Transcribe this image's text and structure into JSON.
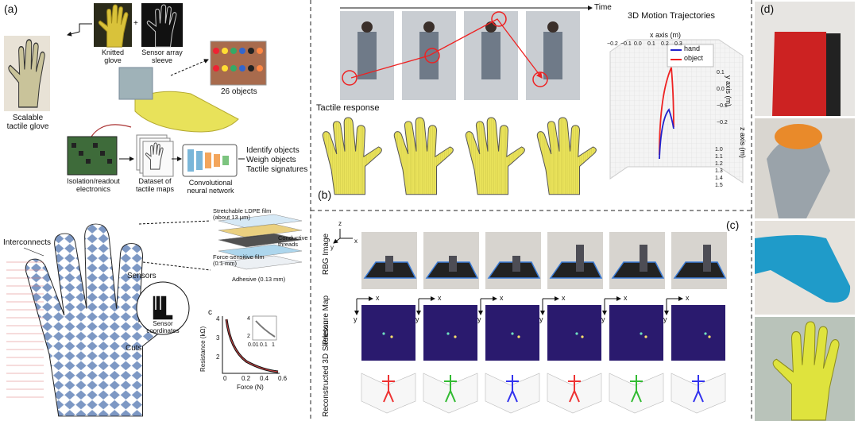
{
  "panel_a": {
    "label": "(a)",
    "knitted_glove": "Knitted glove",
    "plus": "+",
    "sensor_sleeve": "Sensor array sleeve",
    "scalable_glove": "Scalable tactile glove",
    "objects": "26 objects",
    "electronics": "Isolation/readout electronics",
    "dataset": "Dataset of tactile maps",
    "cnn": "Convolutional neural network",
    "outputs": [
      "Identify objects",
      "Weigh objects",
      "Tactile signatures"
    ],
    "interconnects": "Interconnects",
    "sensors": "Sensors",
    "cuts": "Cuts",
    "sensor_coordinates": "Sensor coordinates",
    "layers": [
      "Stretchable LDPE film (about 13 μm)",
      "Conductive threads",
      "Force-sensitive film (0.1 mm)",
      "Adhesive (0.13 mm)"
    ],
    "inset_chart": {
      "label": "c",
      "ylabel": "Resistance (kΩ)",
      "xlabel": "Force (N)",
      "xticks": [
        "0",
        "0.2",
        "0.4",
        "0.6"
      ],
      "yticks": [
        "4",
        "3",
        "2"
      ],
      "inset_xticks": [
        "0.01",
        "0.1",
        "1"
      ],
      "inset_yticks": [
        "4",
        "2"
      ]
    }
  },
  "panel_b": {
    "label": "(b)",
    "time": "Time",
    "tactile_response": "Tactile response",
    "trajectory_chart": {
      "title": "3D Motion Trajectories",
      "xlabel": "x axis (m)",
      "ylabel": "y axis (m)",
      "zlabel": "z axis (m)",
      "legend": [
        "hand",
        "object"
      ],
      "xticks": [
        "−0.2",
        "−0.1",
        "0.0",
        "0.1",
        "0.2",
        "0.3"
      ],
      "yticks": [
        "0.1",
        "0.0",
        "−0.1",
        "−0.2"
      ],
      "zticks": [
        "1.0",
        "1.1",
        "1.2",
        "1.3",
        "1.4",
        "1.5"
      ]
    }
  },
  "panel_c": {
    "label": "(c)",
    "rows": [
      "RBG Image",
      "Pressure Map",
      "Reconstructed 3D Skeleton"
    ],
    "axes": {
      "x": "x",
      "y": "y",
      "z": "z"
    }
  },
  "panel_d": {
    "label": "(d)"
  }
}
